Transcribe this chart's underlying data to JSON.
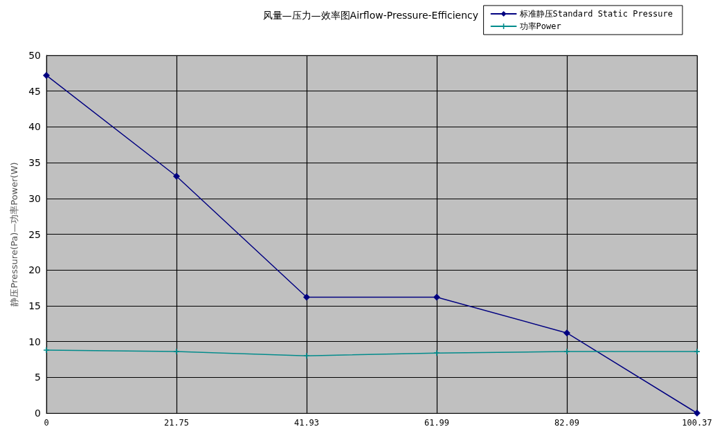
{
  "chart_data": {
    "type": "line",
    "title": "风量—压力—效率图Airflow-Pressure-Efficiency",
    "ylabel": "静压Pressure(Pa)—功率Power(W)",
    "categories": [
      "0",
      "21.75",
      "41.93",
      "61.99",
      "82.09",
      "100.37"
    ],
    "series": [
      {
        "name": "标准静压Standard Static Pressure",
        "color": "#000080",
        "marker": "diamond",
        "values": [
          47.2,
          33.1,
          16.2,
          16.2,
          11.2,
          0
        ]
      },
      {
        "name": "功率Power",
        "color": "#008b8b",
        "marker": "cross",
        "values": [
          8.8,
          8.6,
          8.0,
          8.4,
          8.6,
          8.6
        ]
      }
    ],
    "ylim": [
      0,
      50
    ],
    "yticks": [
      0,
      5,
      10,
      15,
      20,
      25,
      30,
      35,
      40,
      45,
      50
    ],
    "grid": true,
    "legend": "top right",
    "line_style": "solid"
  }
}
